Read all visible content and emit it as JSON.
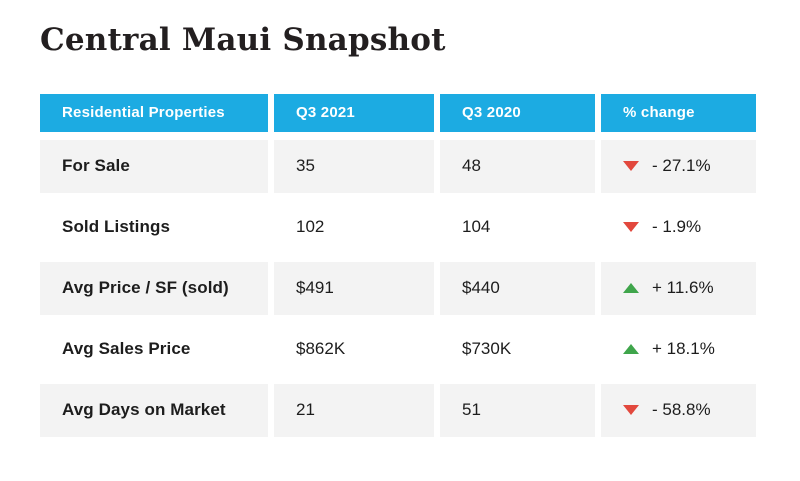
{
  "page": {
    "title": "Central Maui Snapshot"
  },
  "colors": {
    "header_bg": "#1cabe2",
    "row_alt_bg": "#f3f3f3",
    "up": "#3fa54b",
    "down": "#e2483d",
    "text": "#1d1d1d",
    "title": "#231f20"
  },
  "table": {
    "headers": [
      "Residential Properties",
      "Q3 2021",
      "Q3 2020",
      "% change"
    ],
    "rows": [
      {
        "label": "For Sale",
        "q3_2021": "35",
        "q3_2020": "48",
        "change": "- 27.1%",
        "direction": "down"
      },
      {
        "label": "Sold Listings",
        "q3_2021": "102",
        "q3_2020": "104",
        "change": "- 1.9%",
        "direction": "down"
      },
      {
        "label": "Avg Price / SF (sold)",
        "q3_2021": "$491",
        "q3_2020": "$440",
        "change": "+ 11.6%",
        "direction": "up"
      },
      {
        "label": "Avg Sales Price",
        "q3_2021": "$862K",
        "q3_2020": "$730K",
        "change": "+ 18.1%",
        "direction": "up"
      },
      {
        "label": "Avg Days on Market",
        "q3_2021": "21",
        "q3_2020": "51",
        "change": "- 58.8%",
        "direction": "down"
      }
    ]
  },
  "chart_data": {
    "type": "table",
    "title": "Central Maui Snapshot",
    "columns": [
      "Residential Properties",
      "Q3 2021",
      "Q3 2020",
      "% change"
    ],
    "categories": [
      "For Sale",
      "Sold Listings",
      "Avg Price / SF (sold)",
      "Avg Sales Price",
      "Avg Days on Market"
    ],
    "series": [
      {
        "name": "Q3 2021",
        "values": [
          35,
          102,
          491,
          862000,
          21
        ]
      },
      {
        "name": "Q3 2020",
        "values": [
          48,
          104,
          440,
          730000,
          51
        ]
      },
      {
        "name": "% change",
        "values": [
          -27.1,
          -1.9,
          11.6,
          18.1,
          -58.8
        ]
      }
    ],
    "layout_hints": {
      "zebra_striping": true,
      "header_bg": "#1cabe2",
      "positive_color": "#3fa54b",
      "negative_color": "#e2483d"
    }
  }
}
